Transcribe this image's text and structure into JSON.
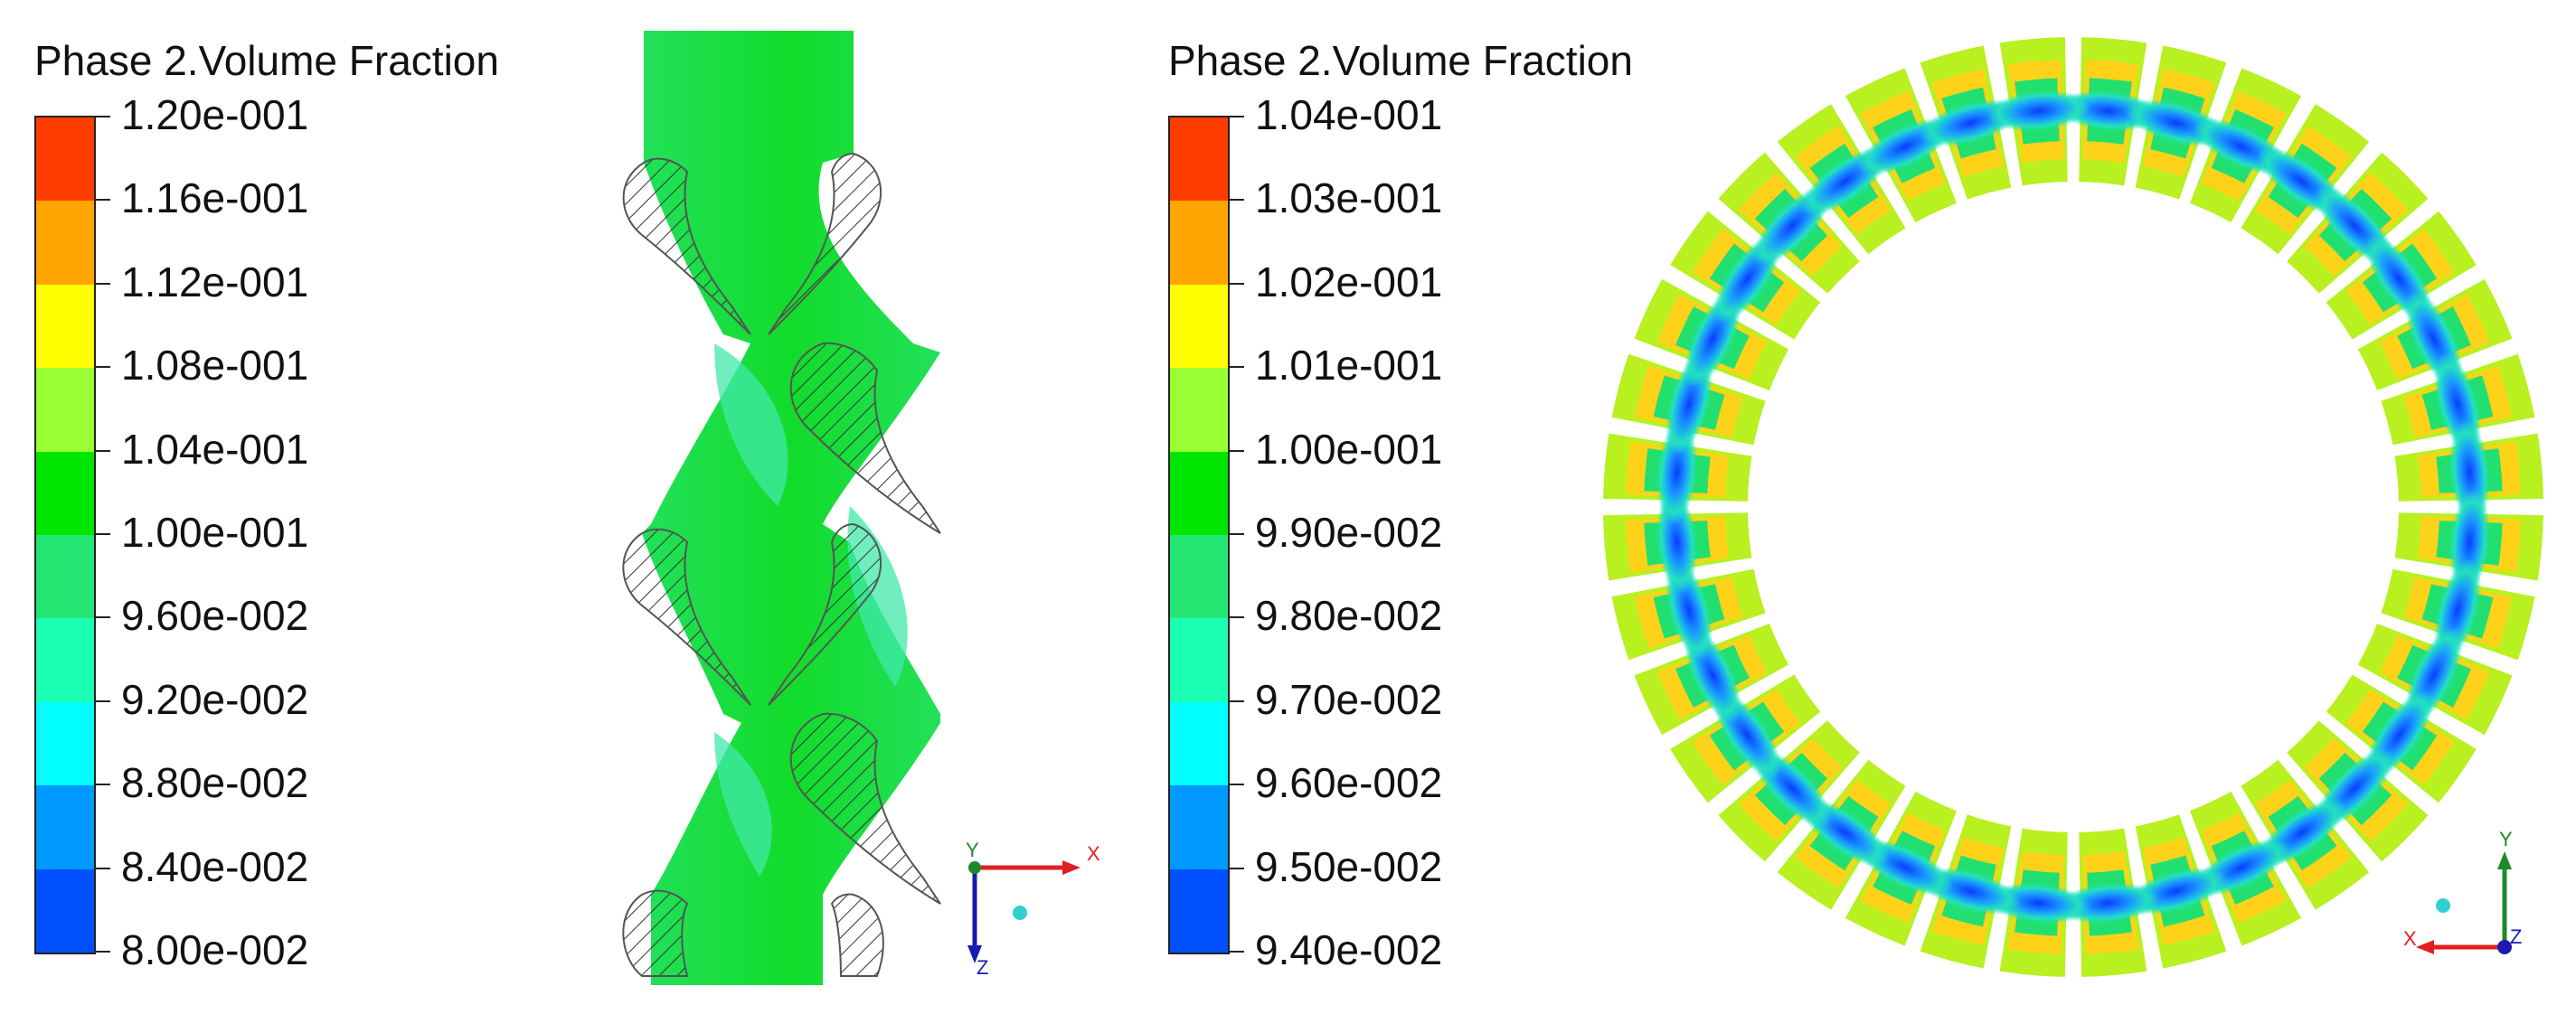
{
  "left_panel": {
    "legend": {
      "title": "Phase 2.Volume Fraction",
      "labels": [
        "1.20e-001",
        "1.16e-001",
        "1.12e-001",
        "1.08e-001",
        "1.04e-001",
        "1.00e-001",
        "9.60e-002",
        "9.20e-002",
        "8.80e-002",
        "8.40e-002",
        "8.00e-002"
      ],
      "colors": [
        "#ff3c00",
        "#ffa500",
        "#ffff00",
        "#99ff33",
        "#00e600",
        "#26e673",
        "#1affb3",
        "#00ffff",
        "#0099ff",
        "#0050ff"
      ]
    },
    "axis_triad": {
      "horizontal": "X",
      "vertical": "Z",
      "out_of_plane": "Y"
    }
  },
  "right_panel": {
    "legend": {
      "title": "Phase 2.Volume Fraction",
      "labels": [
        "1.04e-001",
        "1.03e-001",
        "1.02e-001",
        "1.01e-001",
        "1.00e-001",
        "9.90e-002",
        "9.80e-002",
        "9.70e-002",
        "9.60e-002",
        "9.50e-002",
        "9.40e-002"
      ],
      "colors": [
        "#ff3c00",
        "#ffa500",
        "#ffff00",
        "#99ff33",
        "#00e600",
        "#26e673",
        "#1affb3",
        "#00ffff",
        "#0099ff",
        "#0050ff"
      ]
    },
    "axis_triad": {
      "horizontal": "X",
      "vertical": "Y",
      "out_of_plane": "Z"
    }
  },
  "ring_sector_count": 36
}
